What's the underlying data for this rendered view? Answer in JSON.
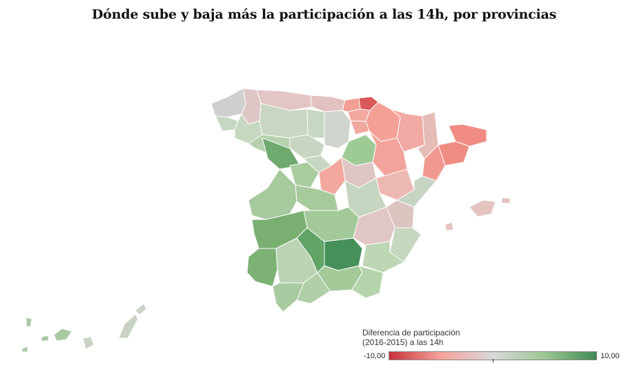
{
  "title": "Dónde sube y baja más la participación a las 14h, por provincias",
  "legend": {
    "title_line1": "Diferencia de participación",
    "title_line2": "(2016-2015) a las 14h",
    "min_label": "-10,00",
    "max_label": "10,00",
    "min_value": -10,
    "max_value": 10
  },
  "colors": {
    "strong_red": "#c8303c",
    "light_red": "#f5a39b",
    "neutral": "#d8d8d8",
    "light_green": "#9dc894",
    "strong_green": "#3f8a55"
  }
}
